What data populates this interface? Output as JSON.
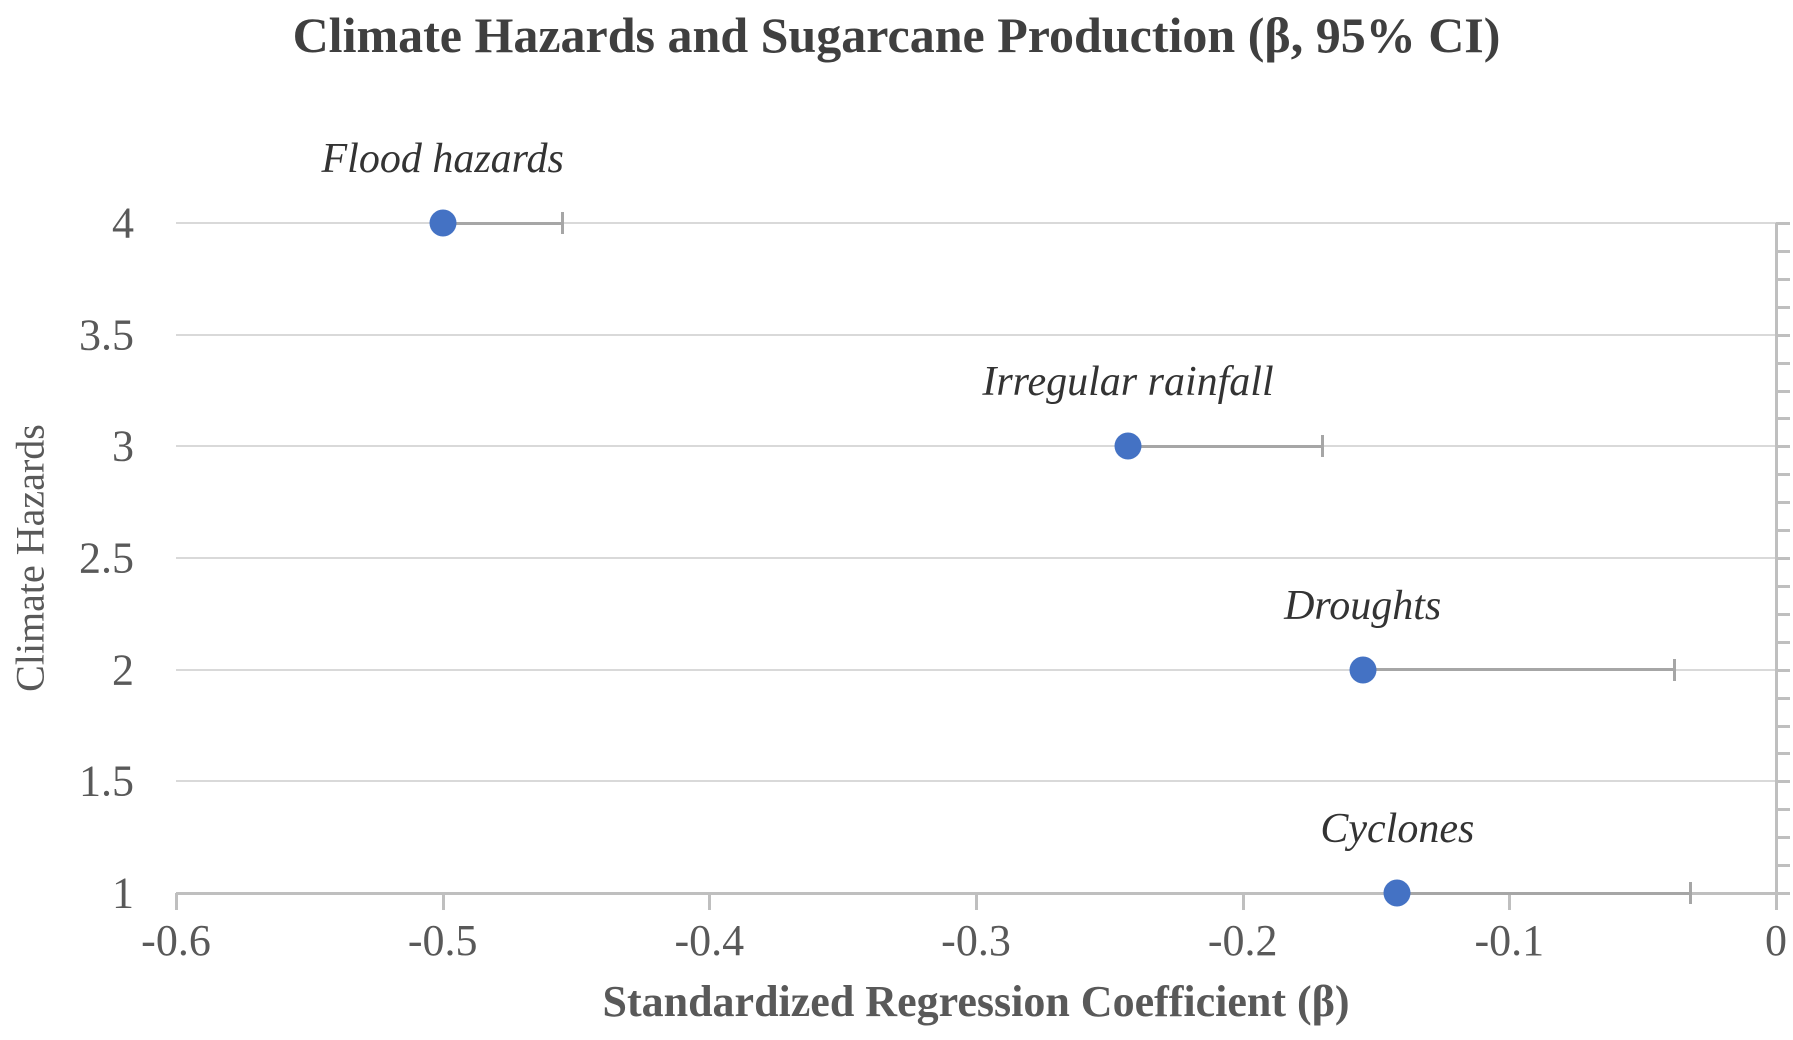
{
  "chart_data": {
    "type": "scatter",
    "title": "Climate Hazards and Sugarcane Production (β, 95% CI)",
    "xlabel": "Standardized Regression Coefficient (β)",
    "ylabel": "Climate Hazards",
    "xlim": [
      -0.6,
      0
    ],
    "ylim": [
      1,
      4
    ],
    "x_ticks": [
      -0.6,
      -0.5,
      -0.4,
      -0.3,
      -0.2,
      -0.1,
      0
    ],
    "x_tick_labels": [
      "-0.6",
      "-0.5",
      "-0.4",
      "-0.3",
      "-0.2",
      "-0.1",
      "0"
    ],
    "y_ticks": [
      1,
      1.5,
      2,
      2.5,
      3,
      3.5,
      4
    ],
    "y_tick_labels": [
      "1",
      "1.5",
      "2",
      "2.5",
      "3",
      "3.5",
      "4"
    ],
    "y_minor_tick_step": 0.125,
    "grid": "horizontal",
    "legend": "none",
    "error_bar_style": "one-sided toward zero, with end caps",
    "points": [
      {
        "label": "Flood hazards",
        "y": 4,
        "beta": -0.5,
        "ci_upper": -0.455
      },
      {
        "label": "Irregular rainfall",
        "y": 3,
        "beta": -0.243,
        "ci_upper": -0.17
      },
      {
        "label": "Droughts",
        "y": 2,
        "beta": -0.155,
        "ci_upper": -0.038
      },
      {
        "label": "Cyclones",
        "y": 1,
        "beta": -0.142,
        "ci_upper": -0.032
      }
    ],
    "colors": {
      "marker": "#4472C4",
      "error_bar": "#A6A6A6",
      "gridline": "#D9D9D9",
      "axis": "#BFBFBF",
      "title_text": "#3F3F3F",
      "tick_text": "#595959",
      "point_label_text": "#333333"
    }
  }
}
